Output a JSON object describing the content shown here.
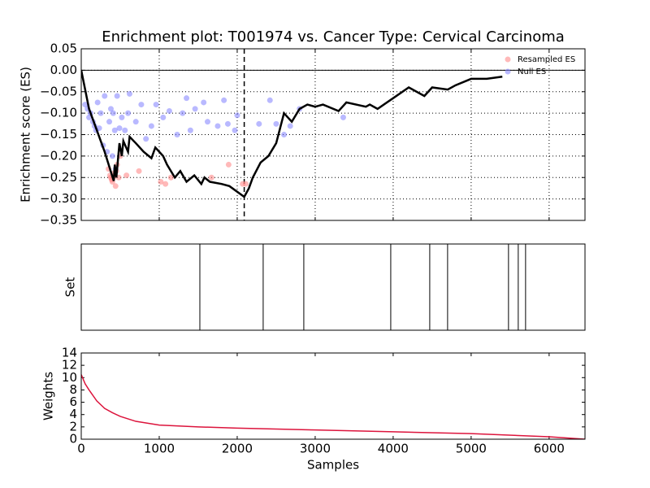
{
  "chart_data": [
    {
      "type": "line",
      "title": "Enrichment plot: T001974 vs. Cancer Type: Cervical Carcinoma",
      "y_label": "Enrichment score (ES)",
      "xlim": [
        0,
        6460
      ],
      "ylim": [
        -0.35,
        0.05
      ],
      "xticks": [
        0,
        1000,
        2000,
        3000,
        4000,
        5000,
        6000
      ],
      "yticks": [
        {
          "value": -0.35,
          "label": "−0.35"
        },
        {
          "value": -0.3,
          "label": "−0.30"
        },
        {
          "value": -0.25,
          "label": "−0.25"
        },
        {
          "value": -0.2,
          "label": "−0.20"
        },
        {
          "value": -0.15,
          "label": "−0.15"
        },
        {
          "value": -0.1,
          "label": "−0.10"
        },
        {
          "value": -0.05,
          "label": "−0.05"
        },
        {
          "value": 0,
          "label": "0.00"
        },
        {
          "value": 0.05,
          "label": "0.05"
        }
      ],
      "grid": true,
      "legend": "upper right",
      "hline": 0,
      "vline": 2090,
      "series": [
        {
          "name": "Resampled ES",
          "mode": "scatter",
          "color": "#ff8080",
          "x": [
            350,
            370,
            380,
            390,
            400,
            410,
            420,
            430,
            440,
            450,
            460,
            480,
            500,
            580,
            740,
            1020,
            1080,
            1150,
            1670,
            1890,
            2070,
            2110
          ],
          "values": [
            -0.23,
            -0.245,
            -0.25,
            -0.255,
            -0.26,
            -0.25,
            -0.24,
            -0.245,
            -0.27,
            -0.235,
            -0.22,
            -0.25,
            -0.2,
            -0.245,
            -0.235,
            -0.26,
            -0.265,
            -0.25,
            -0.25,
            -0.22,
            -0.265,
            -0.265
          ]
        },
        {
          "name": "Null ES",
          "mode": "scatter",
          "color": "#8080ff",
          "x": [
            50,
            80,
            100,
            120,
            150,
            170,
            190,
            210,
            230,
            250,
            280,
            300,
            330,
            360,
            380,
            400,
            410,
            430,
            440,
            460,
            490,
            520,
            560,
            600,
            620,
            700,
            770,
            830,
            900,
            960,
            1050,
            1130,
            1230,
            1300,
            1350,
            1400,
            1460,
            1570,
            1620,
            1750,
            1830,
            1880,
            1970,
            2000,
            2280,
            2420,
            2500,
            2600,
            2680,
            2800,
            3360
          ],
          "values": [
            -0.08,
            -0.09,
            -0.11,
            -0.1,
            -0.12,
            -0.13,
            -0.14,
            -0.075,
            -0.135,
            -0.1,
            -0.175,
            -0.06,
            -0.19,
            -0.12,
            -0.09,
            -0.2,
            -0.1,
            -0.14,
            -0.23,
            -0.06,
            -0.135,
            -0.11,
            -0.14,
            -0.1,
            -0.055,
            -0.12,
            -0.08,
            -0.16,
            -0.13,
            -0.08,
            -0.11,
            -0.095,
            -0.15,
            -0.1,
            -0.065,
            -0.14,
            -0.09,
            -0.075,
            -0.12,
            -0.13,
            -0.07,
            -0.125,
            -0.14,
            -0.105,
            -0.125,
            -0.07,
            -0.125,
            -0.15,
            -0.13,
            -0.09,
            -0.11
          ]
        },
        {
          "mode": "line",
          "color": "#000000",
          "x": [
            0,
            100,
            200,
            300,
            417,
            430,
            450,
            490,
            520,
            540,
            600,
            620,
            700,
            800,
            900,
            950,
            1050,
            1100,
            1200,
            1270,
            1350,
            1450,
            1540,
            1580,
            1650,
            1800,
            1900,
            2090,
            2150,
            2200,
            2300,
            2400,
            2500,
            2600,
            2700,
            2800,
            2900,
            3000,
            3100,
            3300,
            3400,
            3650,
            3700,
            3800,
            4000,
            4200,
            4400,
            4500,
            4700,
            4800,
            5000,
            5200,
            5400
          ],
          "values": [
            0,
            -0.09,
            -0.14,
            -0.19,
            -0.258,
            -0.22,
            -0.25,
            -0.17,
            -0.2,
            -0.165,
            -0.19,
            -0.155,
            -0.17,
            -0.19,
            -0.205,
            -0.18,
            -0.2,
            -0.22,
            -0.25,
            -0.235,
            -0.26,
            -0.245,
            -0.265,
            -0.25,
            -0.26,
            -0.265,
            -0.27,
            -0.295,
            -0.275,
            -0.25,
            -0.215,
            -0.2,
            -0.17,
            -0.1,
            -0.12,
            -0.09,
            -0.08,
            -0.085,
            -0.08,
            -0.095,
            -0.075,
            -0.085,
            -0.08,
            -0.09,
            -0.065,
            -0.04,
            -0.06,
            -0.04,
            -0.045,
            -0.035,
            -0.02,
            -0.02,
            -0.015
          ]
        }
      ]
    },
    {
      "type": "rug",
      "y_label": "Set",
      "xlim": [
        0,
        6460
      ],
      "color": "#000000",
      "values": [
        1521,
        2333,
        2854,
        3969,
        4469,
        4698,
        5479,
        5604,
        5698
      ]
    },
    {
      "type": "line",
      "y_label": "Weights",
      "x_label": "Samples",
      "xlim": [
        0,
        6460
      ],
      "ylim": [
        0,
        14
      ],
      "xticks": [
        0,
        1000,
        2000,
        3000,
        4000,
        5000,
        6000
      ],
      "yticks": [
        0,
        2,
        4,
        6,
        8,
        10,
        12,
        14
      ],
      "grid": false,
      "series": [
        {
          "mode": "line",
          "color": "#dc143c",
          "x": [
            0,
            50,
            100,
            200,
            300,
            400,
            500,
            700,
            1000,
            1500,
            2000,
            3000,
            4000,
            5000,
            6000,
            6460
          ],
          "values": [
            10.5,
            9,
            8,
            6.2,
            5,
            4.3,
            3.7,
            2.9,
            2.3,
            2,
            1.8,
            1.5,
            1.2,
            0.9,
            0.4,
            0
          ]
        }
      ]
    }
  ]
}
